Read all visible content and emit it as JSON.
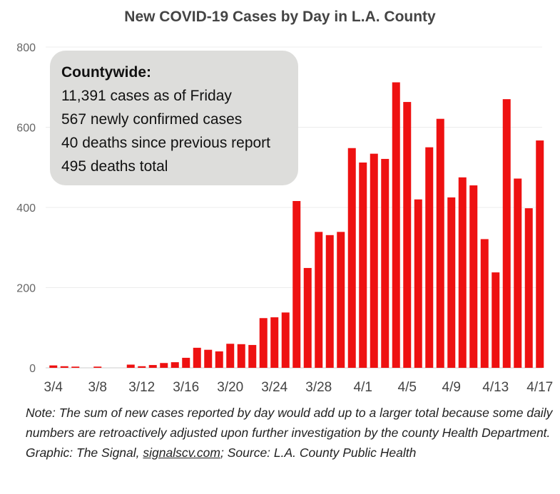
{
  "chart_data": {
    "type": "bar",
    "title": "New COVID-19 Cases by Day in L.A. County",
    "ylim": [
      0,
      800
    ],
    "yticks": [
      0,
      200,
      400,
      600,
      800
    ],
    "xtick_labels": [
      "3/4",
      "3/8",
      "3/12",
      "3/16",
      "3/20",
      "3/24",
      "3/28",
      "4/1",
      "4/5",
      "4/9",
      "4/13",
      "4/17"
    ],
    "grid": true,
    "bar_color": "#ee1111",
    "categories": [
      "3/4",
      "3/5",
      "3/6",
      "3/7",
      "3/8",
      "3/9",
      "3/10",
      "3/11",
      "3/12",
      "3/13",
      "3/14",
      "3/15",
      "3/16",
      "3/17",
      "3/18",
      "3/19",
      "3/20",
      "3/21",
      "3/22",
      "3/23",
      "3/24",
      "3/25",
      "3/26",
      "3/27",
      "3/28",
      "3/29",
      "3/30",
      "3/31",
      "4/1",
      "4/2",
      "4/3",
      "4/4",
      "4/5",
      "4/6",
      "4/7",
      "4/8",
      "4/9",
      "4/10",
      "4/11",
      "4/12",
      "4/13",
      "4/14",
      "4/15",
      "4/16",
      "4/17"
    ],
    "values": [
      6,
      4,
      3,
      0,
      3,
      0,
      0,
      8,
      4,
      7,
      12,
      14,
      25,
      50,
      45,
      41,
      60,
      59,
      57,
      124,
      126,
      138,
      416,
      249,
      339,
      331,
      339,
      548,
      512,
      534,
      521,
      712,
      663,
      420,
      550,
      621,
      425,
      475,
      455,
      321,
      238,
      670,
      472,
      398,
      567
    ]
  },
  "info_box": {
    "heading": "Countywide:",
    "lines": [
      "11,391 cases as of Friday",
      "567 newly confirmed cases",
      "40 deaths since previous report",
      "495 deaths total"
    ]
  },
  "notes": {
    "note": "Note: The sum of new cases reported by day would add up to a larger total because some daily numbers are retroactively adjusted upon further investigation by the county Health Department.",
    "credit_prefix": "Graphic: The Signal, ",
    "credit_link": "signalscv.com",
    "credit_suffix": "; Source: L.A. County Public Health"
  }
}
